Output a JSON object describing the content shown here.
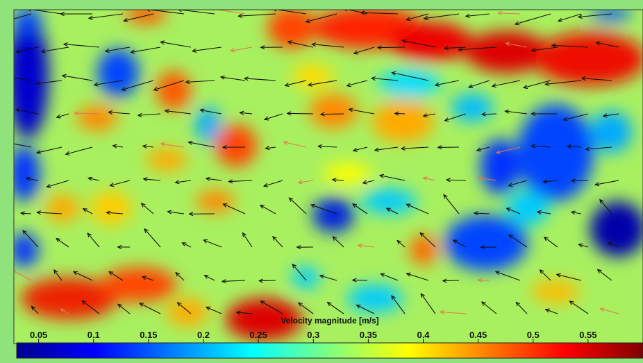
{
  "chart_data": {
    "type": "heatmap",
    "title": "",
    "xlabel": "",
    "ylabel": "",
    "grid": false,
    "colormap": "jet",
    "colorbar": {
      "title": "Velocity magnitude [m/s]",
      "range": [
        0.03,
        0.6
      ],
      "ticks": [
        0.05,
        0.1,
        0.15,
        0.2,
        0.25,
        0.3,
        0.35,
        0.4,
        0.45,
        0.5,
        0.55
      ],
      "tick_labels": [
        "0.05",
        "0.1",
        "0.15",
        "0.2",
        "0.25",
        "0.3",
        "0.35",
        "0.4",
        "0.45",
        "0.5",
        "0.55"
      ],
      "placement": "bottom"
    },
    "overlay": "velocity vectors (quiver), predominantly pointing left",
    "colors": {
      "background": "#8fe37a",
      "arrow": "#111111",
      "arrow_highlight": "#e07a4a"
    }
  }
}
